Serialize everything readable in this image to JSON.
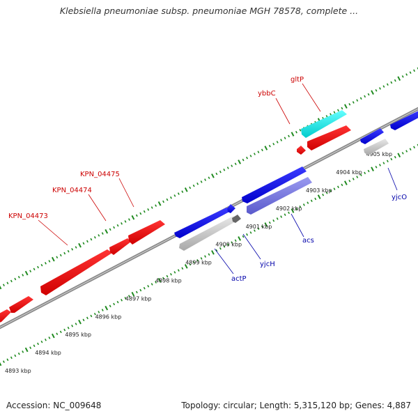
{
  "title": "Klebsiella pneumoniae subsp. pneumoniae MGH 78578, complete ...",
  "accession_text": "Accession: NC_009648",
  "summary_text": "Topology: circular; Length: 5,315,120 bp; Genes: 4,887",
  "colors": {
    "backbone": "#8a8a8a",
    "tick": "#1f8a1f",
    "forward_label": "#cc0000",
    "reverse_label": "#0000aa"
  },
  "kbp_labels": [
    {
      "text": "4893 kbp"
    },
    {
      "text": "4894 kbp"
    },
    {
      "text": "4895 kbp"
    },
    {
      "text": "4896 kbp"
    },
    {
      "text": "4897 kbp"
    },
    {
      "text": "4898 kbp"
    },
    {
      "text": "4899 kbp"
    },
    {
      "text": "4900 kbp"
    },
    {
      "text": "4901 kbp"
    },
    {
      "text": "4902 kbp"
    },
    {
      "text": "4903 kbp"
    },
    {
      "text": "4904 kbp"
    },
    {
      "text": "4905 kbp"
    }
  ],
  "genes": [
    {
      "name": "KPN_04473",
      "strand": "forward",
      "color": "#ff0000"
    },
    {
      "name": "KPN_04474",
      "strand": "forward",
      "color": "#ff0000"
    },
    {
      "name": "KPN_04475",
      "strand": "forward",
      "color": "#ff0000"
    },
    {
      "name": "ybbC",
      "strand": "forward",
      "color": "#ff0000"
    },
    {
      "name": "gltP",
      "strand": "forward",
      "color": "#00ffff"
    },
    {
      "name": "actP",
      "strand": "reverse",
      "color": "#c8c8c8"
    },
    {
      "name": "yjcH",
      "strand": "reverse",
      "color": "#0000ff"
    },
    {
      "name": "acs",
      "strand": "reverse",
      "color": "#7070e0"
    },
    {
      "name": "yjcO",
      "strand": "reverse",
      "color": "#c8c8c8"
    }
  ]
}
